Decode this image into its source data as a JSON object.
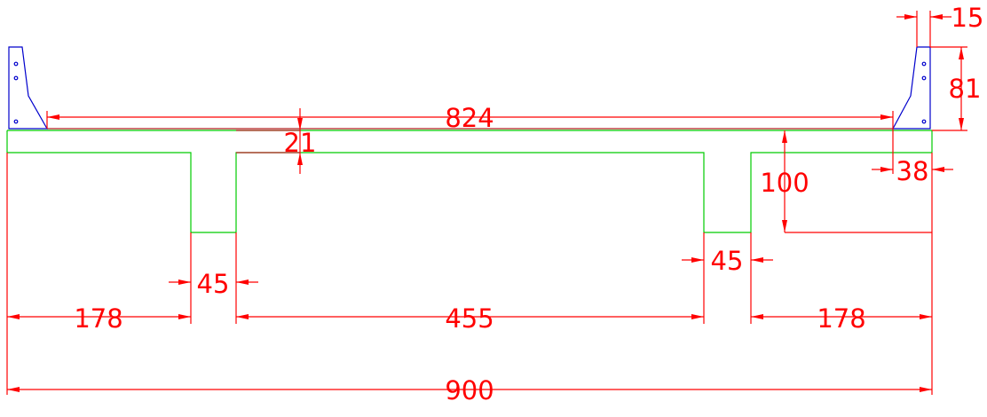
{
  "colors": {
    "dimension": "#ff0000",
    "section": "#00cc00",
    "parapet": "#0000cc",
    "background": "#ffffff"
  },
  "dimensions": {
    "total_width": "900",
    "left_flange": "178",
    "right_flange": "178",
    "middle_span": "455",
    "left_web": "45",
    "right_web": "45",
    "deck_length": "824",
    "deck_thickness": "21",
    "girder_depth": "100",
    "parapet_height": "81",
    "parapet_top_width": "15",
    "parapet_base_width": "38"
  }
}
